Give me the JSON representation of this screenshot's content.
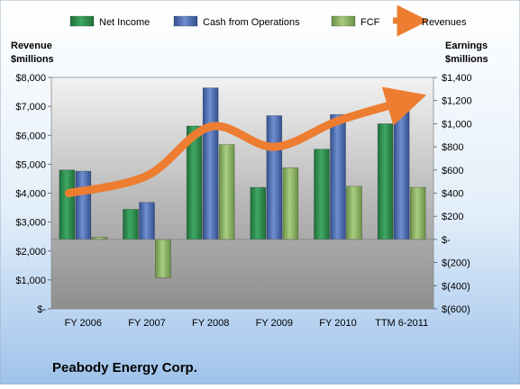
{
  "chart_data": {
    "type": "bar",
    "title": "Peabody Energy Corp.",
    "categories": [
      "FY 2006",
      "FY 2007",
      "FY 2008",
      "FY 2009",
      "FY 2010",
      "TTM 6-2011"
    ],
    "left_axis": {
      "label_line1": "Revenue",
      "label_line2": "$millions",
      "ylim": [
        0,
        8000
      ],
      "ticks": [
        0,
        1000,
        2000,
        3000,
        4000,
        5000,
        6000,
        7000,
        8000
      ],
      "tick_labels": [
        "$-",
        "$1,000",
        "$2,000",
        "$3,000",
        "$4,000",
        "$5,000",
        "$6,000",
        "$7,000",
        "$8,000"
      ]
    },
    "right_axis": {
      "label_line1": "Earnings",
      "label_line2": "$millions",
      "ylim": [
        -600,
        1400
      ],
      "ticks": [
        -600,
        -400,
        -200,
        0,
        200,
        400,
        600,
        800,
        1000,
        1200,
        1400
      ],
      "tick_labels": [
        "$(600)",
        "$(400)",
        "$(200)",
        "$-",
        "$200",
        "$400",
        "$600",
        "$800",
        "$1,000",
        "$1,200",
        "$1,400"
      ]
    },
    "series": [
      {
        "name": "Net Income",
        "axis": "right",
        "kind": "bar",
        "color": "#2E8B4E",
        "values": [
          600,
          260,
          980,
          450,
          780,
          1000
        ]
      },
      {
        "name": "Cash from Operations",
        "axis": "right",
        "kind": "bar",
        "color": "#4F6FB0",
        "values": [
          590,
          320,
          1310,
          1070,
          1080,
          1260
        ]
      },
      {
        "name": "FCF",
        "axis": "right",
        "kind": "bar",
        "color": "#8CB463",
        "values": [
          20,
          -330,
          820,
          620,
          460,
          450
        ]
      },
      {
        "name": "Revenues",
        "axis": "left",
        "kind": "line",
        "color": "#ED7D31",
        "values": [
          4000,
          4600,
          6300,
          5600,
          6500,
          7200
        ]
      }
    ],
    "legend_position": "top",
    "grid": false
  }
}
